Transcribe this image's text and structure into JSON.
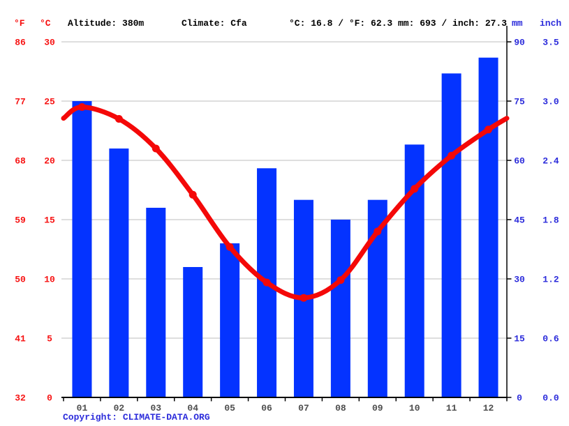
{
  "header": {
    "fahrenheit_label": "°F",
    "celsius_label": "°C",
    "altitude": "Altitude: 380m",
    "climate": "Climate: Cfa",
    "temp_summary": "°C: 16.8 / °F: 62.3",
    "precip_summary": "mm: 693 / inch: 27.3",
    "mm_label": "mm",
    "inch_label": "inch"
  },
  "footer": {
    "copyright_prefix": "Copyright: ",
    "copyright_link": "CLIMATE-DATA.ORG"
  },
  "chart_data": {
    "type": "bar",
    "title": "Climate graph (climograph): monthly precipitation bars with temperature line",
    "categories": [
      "01",
      "02",
      "03",
      "04",
      "05",
      "06",
      "07",
      "08",
      "09",
      "10",
      "11",
      "12"
    ],
    "series": [
      {
        "name": "precipitation_mm",
        "type": "bar",
        "values": [
          75,
          63,
          48,
          33,
          39,
          58,
          50,
          45,
          50,
          64,
          82,
          86
        ]
      },
      {
        "name": "temperature_c",
        "type": "line",
        "values": [
          24.5,
          23.5,
          21.0,
          17.1,
          12.7,
          9.7,
          8.4,
          9.9,
          14.0,
          17.6,
          20.4,
          22.6
        ]
      }
    ],
    "y_axis_left_f": {
      "ticks": [
        "86",
        "77",
        "68",
        "59",
        "50",
        "41",
        "32"
      ]
    },
    "y_axis_left_c": {
      "min": 0,
      "max": 30,
      "ticks": [
        "30",
        "25",
        "20",
        "15",
        "10",
        "5",
        "0"
      ]
    },
    "y_axis_right_mm": {
      "min": 0,
      "max": 90,
      "ticks": [
        "90",
        "75",
        "60",
        "45",
        "30",
        "15",
        "0"
      ]
    },
    "y_axis_right_inch": {
      "ticks": [
        "3.5",
        "3.0",
        "2.4",
        "1.8",
        "1.2",
        "0.6",
        "0.0"
      ]
    },
    "grid": true,
    "legend": "none"
  },
  "colors": {
    "bar_blue": "#0433ff",
    "line_red": "#f40808",
    "label_red": "#f71212",
    "label_blue": "#2c2cdb",
    "month_gray": "#4d4d4d",
    "grid_gray": "#c9c9c9",
    "axis_black": "#000000"
  }
}
